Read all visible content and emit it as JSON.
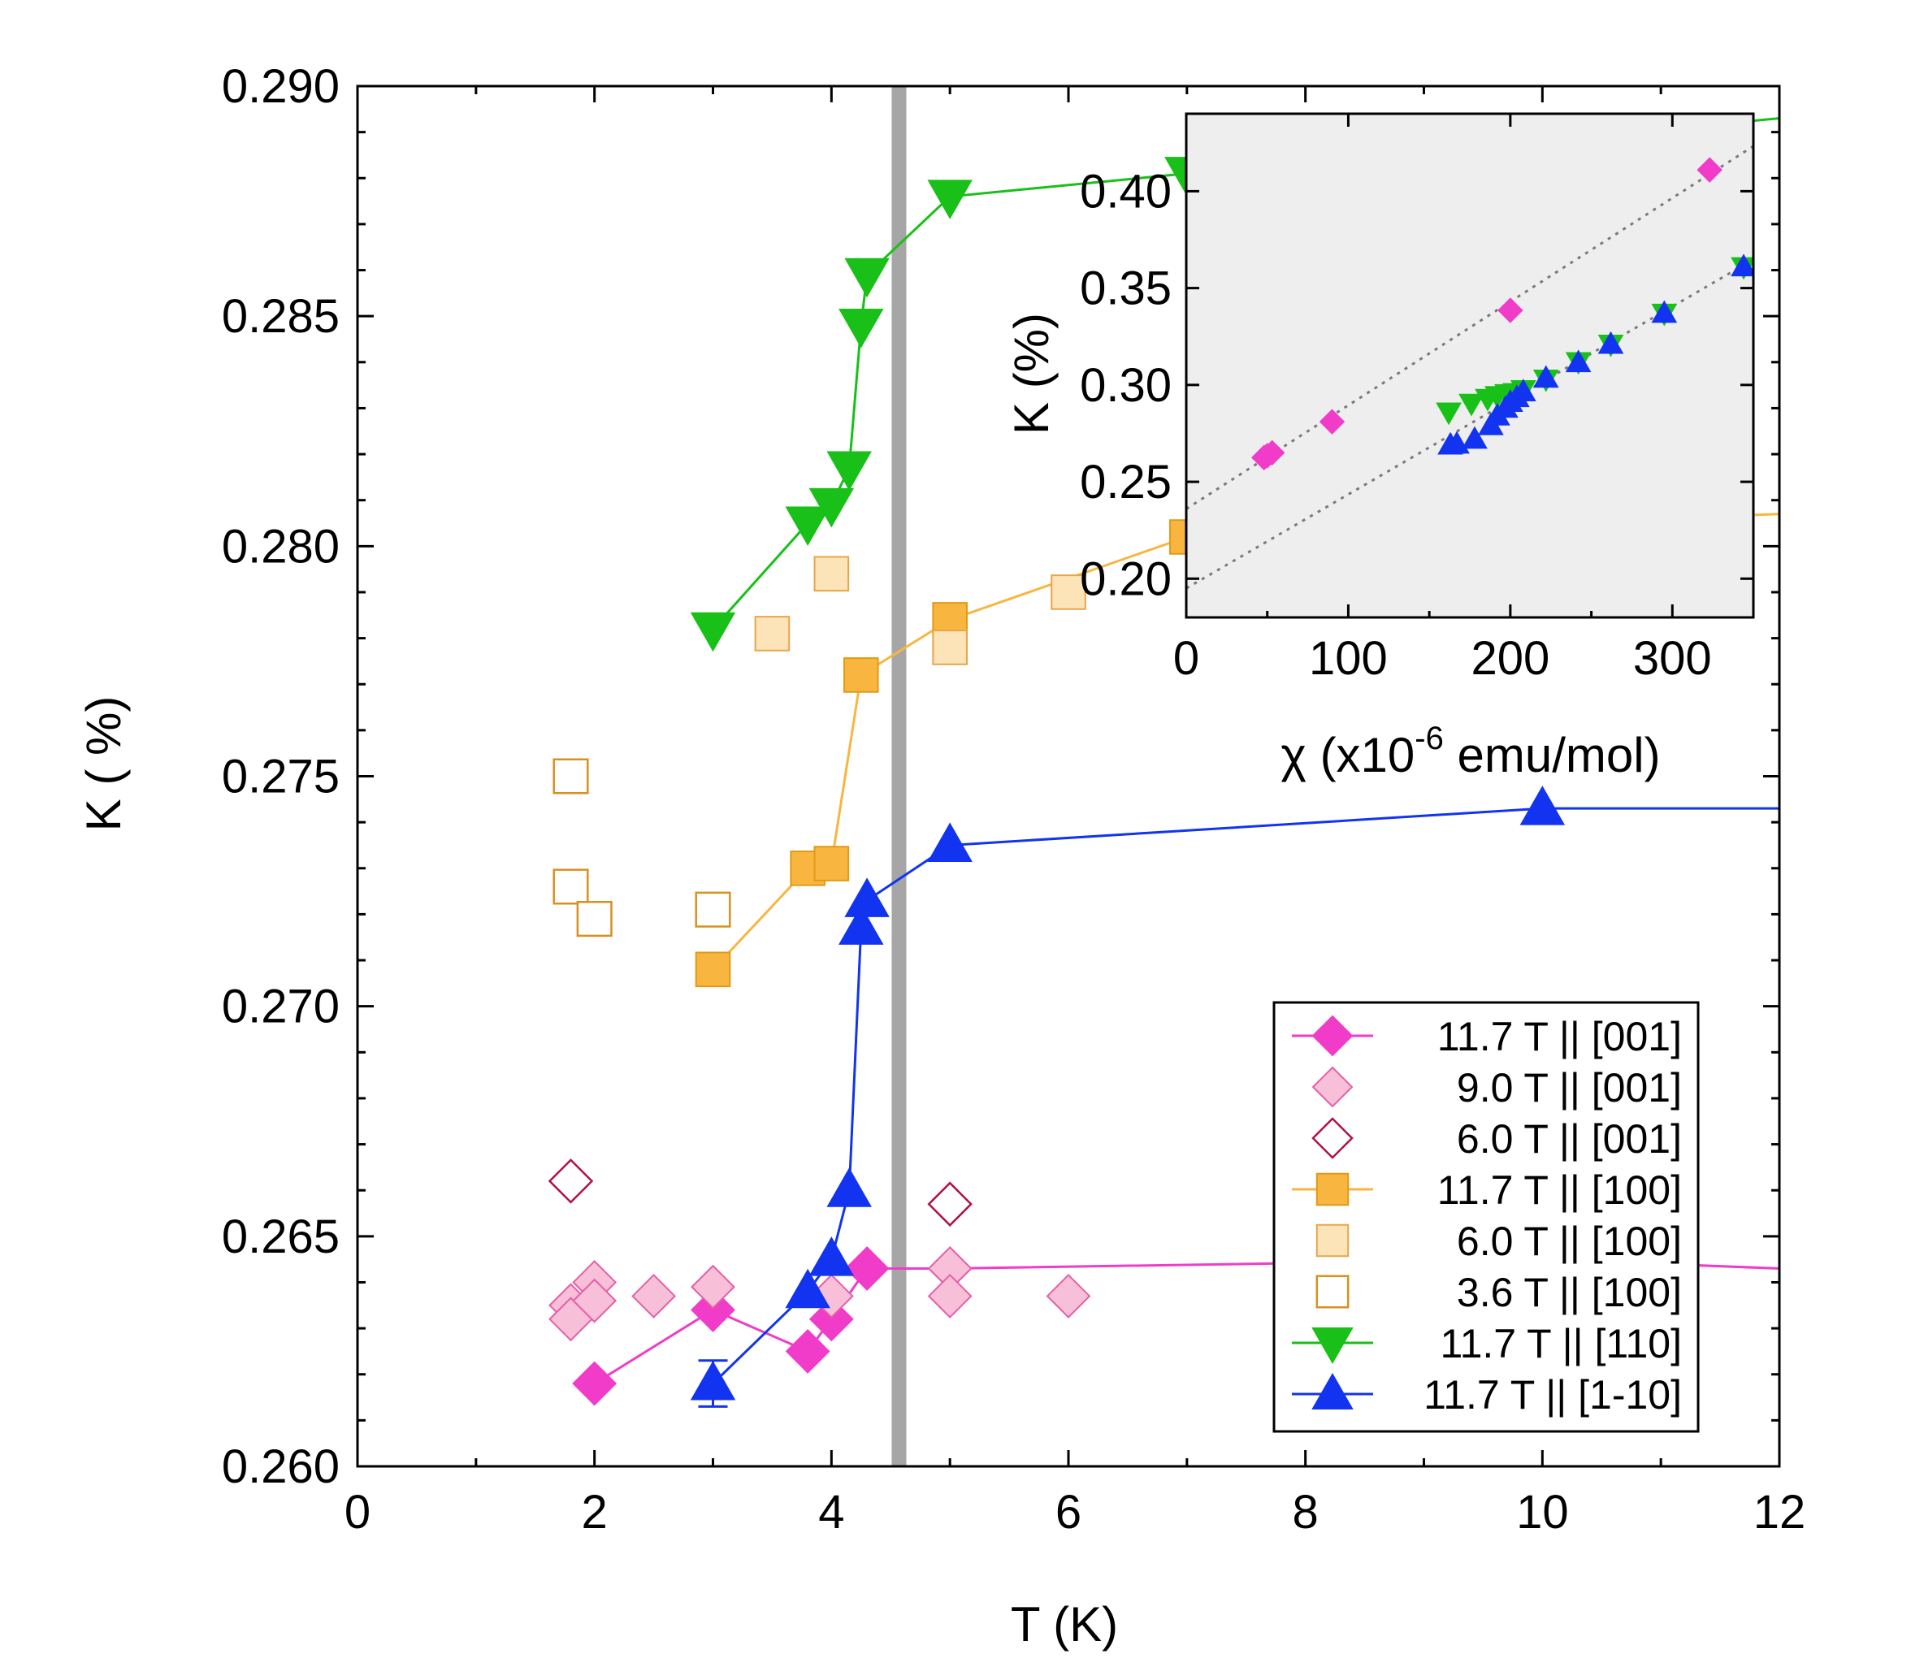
{
  "chart_data": [
    {
      "type": "scatter",
      "xlabel": "T (K)",
      "ylabel": "K  ( %)",
      "xlim": [
        0,
        12
      ],
      "ylim": [
        0.26,
        0.29
      ],
      "xticks": [
        "0",
        "2",
        "4",
        "6",
        "8",
        "10",
        "12"
      ],
      "yticks": [
        "0.260",
        "0.265",
        "0.270",
        "0.275",
        "0.280",
        "0.285",
        "0.290"
      ],
      "grid": false,
      "legend_position": "bottom-right",
      "vertical_line": {
        "x": 4.57,
        "color": "#a6a6a6"
      },
      "series": [
        {
          "name": "11.7 T || [001]",
          "marker": "diamond",
          "filled": true,
          "line": true,
          "color": "#f03cc8",
          "line_color": "#f03cc8",
          "x": [
            2.0,
            3.0,
            3.8,
            4.0,
            4.3,
            5.0,
            10.0,
            12.0
          ],
          "y": [
            0.2618,
            0.2634,
            0.2625,
            0.2632,
            0.2643,
            0.2643,
            0.2645,
            0.2643
          ]
        },
        {
          "name": "9.0 T || [001]",
          "marker": "diamond",
          "filled": true,
          "line": false,
          "color": "#f8bfd9",
          "edge": "#e55fa8",
          "x": [
            1.8,
            1.8,
            2.0,
            2.0,
            2.5,
            3.0,
            4.0,
            5.0,
            5.0,
            6.0
          ],
          "y": [
            0.2635,
            0.2632,
            0.264,
            0.2636,
            0.2637,
            0.2639,
            0.2637,
            0.2643,
            0.2637,
            0.2637
          ]
        },
        {
          "name": "6.0 T || [001]",
          "marker": "diamond",
          "filled": false,
          "line": false,
          "color": "#b0104a",
          "x": [
            1.8,
            5.0
          ],
          "y": [
            0.2662,
            0.2657
          ]
        },
        {
          "name": "11.7 T || [100]",
          "marker": "square",
          "filled": true,
          "line": true,
          "color": "#f8b640",
          "edge": "#e29a14",
          "line_color": "#f8b640",
          "x": [
            3.0,
            3.8,
            4.0,
            4.25,
            5.0,
            7.0,
            12.0
          ],
          "y": [
            0.2708,
            0.273,
            0.2731,
            0.2772,
            0.2784,
            0.2802,
            0.2807
          ]
        },
        {
          "name": "6.0 T || [100]",
          "marker": "square",
          "filled": true,
          "line": false,
          "color": "#fde3b8",
          "edge": "#e6a64a",
          "x": [
            3.5,
            4.0,
            5.0,
            6.0
          ],
          "y": [
            0.2781,
            0.2794,
            0.2778,
            0.279
          ]
        },
        {
          "name": "3.6 T || [100]",
          "marker": "square",
          "filled": false,
          "line": false,
          "color": "#d89020",
          "x": [
            1.8,
            1.8,
            2.0,
            3.0
          ],
          "y": [
            0.275,
            0.2726,
            0.2719,
            0.2721
          ]
        },
        {
          "name": "11.7 T || [110]",
          "marker": "triangle-down",
          "filled": true,
          "line": true,
          "color": "#18c018",
          "line_color": "#18c018",
          "x": [
            3.0,
            3.8,
            4.0,
            4.15,
            4.25,
            4.3,
            5.0,
            7.0,
            12.0
          ],
          "y": [
            0.2782,
            0.2805,
            0.2809,
            0.2817,
            0.2848,
            0.2859,
            0.2876,
            0.2881,
            0.2893
          ]
        },
        {
          "name": "11.7 T || [1-10]",
          "marker": "triangle-up",
          "filled": true,
          "line": true,
          "color": "#1234f0",
          "line_color": "#1234f0",
          "x": [
            3.0,
            3.8,
            4.0,
            4.15,
            4.25,
            4.3,
            5.0,
            10.0,
            12.0
          ],
          "y": [
            0.2618,
            0.2638,
            0.2645,
            0.266,
            0.2717,
            0.2723,
            0.2735,
            0.2743,
            0.2743
          ],
          "error_bar": {
            "x": 3.0,
            "lower": 0.2613,
            "upper": 0.2623
          }
        }
      ]
    },
    {
      "type": "scatter",
      "inset": true,
      "xlabel": "χ (x10",
      "xlabel_sup": "-6",
      "xlabel_tail": " emu/mol)",
      "ylabel": "K (%)",
      "xlim": [
        0,
        350
      ],
      "ylim": [
        0.18,
        0.44
      ],
      "xticks": [
        "0",
        "100",
        "200",
        "300"
      ],
      "yticks": [
        "0.20",
        "0.25",
        "0.30",
        "0.35",
        "0.40"
      ],
      "background": "#eeeeee",
      "fit_lines": [
        {
          "slope": 0.000535,
          "intercept": 0.236
        },
        {
          "slope": 0.000485,
          "intercept": 0.195
        }
      ],
      "series": [
        {
          "name": "[001]",
          "marker": "diamond",
          "color": "#f03cc8",
          "x": [
            48,
            50,
            53,
            90,
            200,
            323
          ],
          "y": [
            0.2625,
            0.2635,
            0.265,
            0.281,
            0.3385,
            0.411
          ]
        },
        {
          "name": "[110]",
          "marker": "triangle-down",
          "color": "#18c018",
          "x": [
            162,
            176,
            186,
            192,
            198,
            203,
            208,
            222,
            242,
            262,
            295,
            344
          ],
          "y": [
            0.286,
            0.2905,
            0.293,
            0.2945,
            0.2955,
            0.296,
            0.2975,
            0.303,
            0.312,
            0.321,
            0.337,
            0.361
          ]
        },
        {
          "name": "[1-10]",
          "marker": "triangle-up",
          "color": "#1234f0",
          "x": [
            163,
            167,
            178,
            188,
            192,
            197,
            200,
            204,
            208,
            222,
            242,
            262,
            295,
            344
          ],
          "y": [
            0.269,
            0.2695,
            0.272,
            0.279,
            0.284,
            0.288,
            0.291,
            0.2935,
            0.2965,
            0.3035,
            0.3115,
            0.321,
            0.337,
            0.361
          ]
        }
      ]
    }
  ]
}
